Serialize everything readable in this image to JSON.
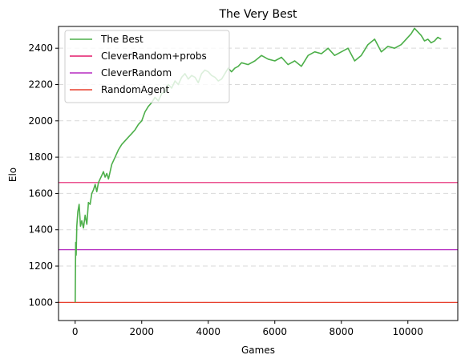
{
  "chart_data": {
    "type": "line",
    "title": "The Very Best",
    "xlabel": "Games",
    "ylabel": "Elo",
    "xlim": [
      -500,
      11500
    ],
    "ylim": [
      900,
      2520
    ],
    "xticks": [
      0,
      2000,
      4000,
      6000,
      8000,
      10000
    ],
    "yticks": [
      1000,
      1200,
      1400,
      1600,
      1800,
      2000,
      2200,
      2400
    ],
    "grid": {
      "y": true,
      "x": false,
      "style": "dashed"
    },
    "legend_position": "top-left",
    "series": [
      {
        "name": "The Best",
        "color": "#4daf4a",
        "x": [
          0,
          15,
          30,
          50,
          80,
          120,
          160,
          200,
          250,
          300,
          350,
          400,
          450,
          500,
          550,
          600,
          650,
          700,
          750,
          800,
          850,
          900,
          950,
          1000,
          1100,
          1200,
          1300,
          1400,
          1500,
          1600,
          1700,
          1800,
          1900,
          2000,
          2100,
          2200,
          2300,
          2400,
          2500,
          2600,
          2700,
          2800,
          2900,
          3000,
          3100,
          3200,
          3300,
          3400,
          3500,
          3600,
          3700,
          3800,
          3900,
          4000,
          4100,
          4200,
          4300,
          4400,
          4500,
          4600,
          4700,
          4800,
          4900,
          5000,
          5200,
          5400,
          5600,
          5800,
          6000,
          6200,
          6400,
          6600,
          6800,
          7000,
          7200,
          7400,
          7600,
          7800,
          8000,
          8200,
          8400,
          8600,
          8800,
          9000,
          9200,
          9400,
          9600,
          9800,
          10000,
          10100,
          10200,
          10300,
          10400,
          10500,
          10600,
          10700,
          10800,
          10900,
          11000
        ],
        "y": [
          1000,
          1330,
          1260,
          1420,
          1500,
          1540,
          1420,
          1450,
          1410,
          1480,
          1430,
          1550,
          1540,
          1600,
          1620,
          1650,
          1610,
          1660,
          1680,
          1700,
          1720,
          1690,
          1710,
          1680,
          1760,
          1800,
          1840,
          1870,
          1890,
          1910,
          1930,
          1950,
          1980,
          2000,
          2050,
          2080,
          2100,
          2130,
          2110,
          2150,
          2160,
          2200,
          2180,
          2220,
          2200,
          2240,
          2260,
          2230,
          2250,
          2240,
          2210,
          2260,
          2280,
          2270,
          2250,
          2240,
          2220,
          2230,
          2260,
          2290,
          2270,
          2290,
          2300,
          2320,
          2310,
          2330,
          2360,
          2340,
          2330,
          2350,
          2310,
          2330,
          2300,
          2360,
          2380,
          2370,
          2400,
          2360,
          2380,
          2400,
          2330,
          2360,
          2420,
          2450,
          2380,
          2410,
          2400,
          2420,
          2460,
          2480,
          2510,
          2490,
          2470,
          2440,
          2450,
          2430,
          2440,
          2460,
          2450
        ]
      },
      {
        "name": "CleverRandom+probs",
        "color": "#e41a6c",
        "constant": 1660
      },
      {
        "name": "CleverRandom",
        "color": "#b52cc0",
        "constant": 1290
      },
      {
        "name": "RandomAgent",
        "color": "#e8402e",
        "constant": 1000
      }
    ]
  }
}
